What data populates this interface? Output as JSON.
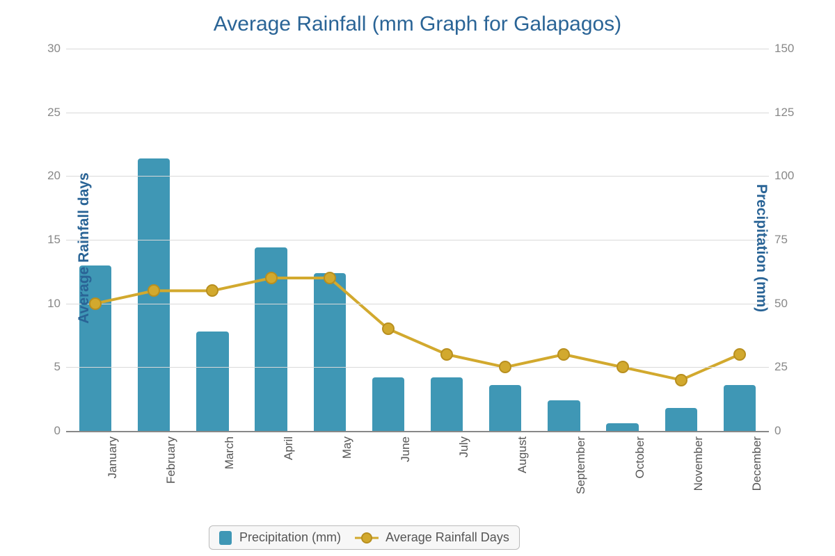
{
  "chart": {
    "type": "bar+line",
    "title": "Average Rainfall (mm Graph for Galapagos)",
    "title_fontsize": 30,
    "title_color": "#2a6496",
    "background_color": "#ffffff",
    "grid_color": "#d9d9d9",
    "axis_line_color": "#888888",
    "tick_label_color": "#888888",
    "tick_label_fontsize": 17,
    "cat_label_color": "#555555",
    "cat_label_fontsize": 17,
    "categories": [
      "January",
      "February",
      "March",
      "April",
      "May",
      "June",
      "July",
      "August",
      "September",
      "October",
      "November",
      "December"
    ],
    "left_axis": {
      "title": "Average Rainfall days",
      "min": 0,
      "max": 30,
      "step": 5,
      "fontsize": 21,
      "color": "#2a6496"
    },
    "right_axis": {
      "title": "Precipitation (mm)",
      "min": 0,
      "max": 150,
      "step": 25,
      "fontsize": 21,
      "color": "#2a6496"
    },
    "bars": {
      "label": "Precipitation (mm)",
      "axis": "right",
      "values": [
        65,
        107,
        39,
        72,
        62,
        21,
        21,
        18,
        12,
        3,
        9,
        18
      ],
      "color": "#3f97b5",
      "width_frac": 0.55
    },
    "line": {
      "label": "Average Rainfall Days",
      "axis": "left",
      "values": [
        10,
        11,
        11,
        12,
        12,
        8,
        6,
        5,
        6,
        5,
        4,
        6
      ],
      "stroke_color": "#d2a92e",
      "stroke_width": 4,
      "marker_fill": "#d2a92e",
      "marker_border": "#b88f1f",
      "marker_radius": 7
    },
    "legend": {
      "bg": "#f7f7f7",
      "border": "#bbbbbb",
      "fontsize": 18,
      "text_color": "#555555"
    }
  }
}
